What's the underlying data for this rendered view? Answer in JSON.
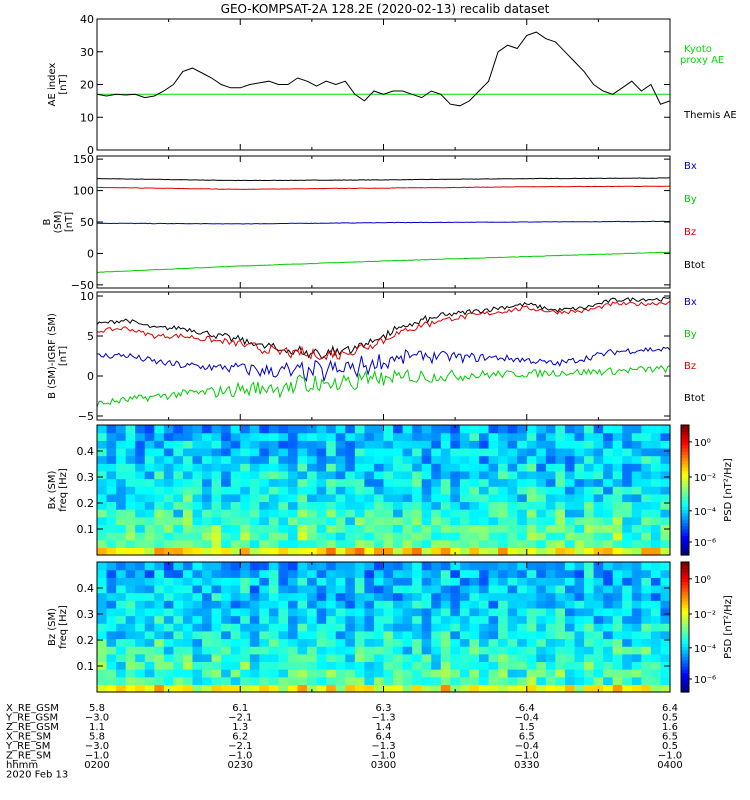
{
  "title": "GEO-KOMPSAT-2A 128.2E (2020-02-13) recalib dataset",
  "colors": {
    "black": "#000000",
    "red": "#e00000",
    "blue": "#0000c8",
    "green": "#00cc00",
    "kyoto": "#00dd00",
    "frame": "#000000"
  },
  "chart_data": [
    {
      "type": "line",
      "ylabel": [
        "AE index",
        "[nT]"
      ],
      "ylim": [
        0,
        40
      ],
      "yticks": [
        0,
        10,
        20,
        30,
        40
      ],
      "legend": [
        {
          "text": "Kyoto",
          "color": "#00dd00"
        },
        {
          "text": "proxy AE",
          "color": "#00dd00"
        },
        {
          "text": "Themis AE",
          "color": "#000000"
        }
      ],
      "series": [
        {
          "name": "Kyoto proxy AE",
          "color": "#00dd00",
          "x": [
            0,
            120
          ],
          "y": [
            17,
            17
          ]
        },
        {
          "name": "Themis AE",
          "color": "#000000",
          "x": [
            0,
            2,
            4,
            6,
            8,
            10,
            12,
            14,
            16,
            18,
            20,
            22,
            24,
            26,
            28,
            30,
            32,
            34,
            36,
            38,
            40,
            42,
            44,
            46,
            48,
            50,
            52,
            54,
            56,
            58,
            60,
            62,
            64,
            66,
            68,
            70,
            72,
            74,
            76,
            78,
            80,
            82,
            84,
            86,
            88,
            90,
            92,
            94,
            96,
            98,
            100,
            102,
            104,
            106,
            108,
            110,
            112,
            114,
            116,
            118,
            120
          ],
          "y": [
            17,
            16.5,
            17,
            16.8,
            17,
            16,
            16.5,
            18,
            20,
            24,
            25,
            23.5,
            22,
            20,
            19,
            19,
            20,
            20.5,
            21,
            20,
            20,
            22,
            21,
            19.5,
            21,
            20,
            21,
            17,
            15,
            18,
            17,
            18,
            18,
            17,
            16,
            18,
            17,
            14,
            13.5,
            15,
            18,
            21,
            30,
            32,
            31,
            35,
            36,
            34,
            33,
            30,
            27,
            24,
            20,
            18,
            17,
            19,
            21,
            18,
            20,
            14,
            15
          ]
        }
      ]
    },
    {
      "type": "line",
      "ylabel": [
        "B",
        "(SM)",
        "[nT]"
      ],
      "ylim": [
        -55,
        155
      ],
      "yticks": [
        -50,
        0,
        50,
        100,
        150
      ],
      "legend": [
        {
          "text": "Bx",
          "color": "#0000c8"
        },
        {
          "text": "By",
          "color": "#00cc00"
        },
        {
          "text": "Bz",
          "color": "#e00000"
        },
        {
          "text": "Btot",
          "color": "#000000"
        }
      ],
      "series": [
        {
          "name": "Btot",
          "color": "#000000",
          "x": [
            0,
            30,
            60,
            90,
            120
          ],
          "y": [
            119,
            116,
            117,
            119,
            120
          ]
        },
        {
          "name": "Bz",
          "color": "#e00000",
          "x": [
            0,
            30,
            60,
            90,
            120
          ],
          "y": [
            105,
            102,
            104,
            106,
            107
          ]
        },
        {
          "name": "Bx",
          "color": "#0000c8",
          "x": [
            0,
            30,
            60,
            90,
            120
          ],
          "y": [
            48,
            47,
            49,
            50,
            51
          ]
        },
        {
          "name": "By",
          "color": "#00cc00",
          "x": [
            0,
            30,
            60,
            90,
            120
          ],
          "y": [
            -30,
            -20,
            -12,
            -5,
            2
          ]
        }
      ]
    },
    {
      "type": "line",
      "ylabel": [
        "B (SM)-IGRF (SM)",
        "[nT]"
      ],
      "ylim": [
        -5.5,
        10.5
      ],
      "yticks": [
        -5,
        0,
        5,
        10
      ],
      "legend": [
        {
          "text": "Bx",
          "color": "#0000c8"
        },
        {
          "text": "By",
          "color": "#00cc00"
        },
        {
          "text": "Bz",
          "color": "#e00000"
        },
        {
          "text": "Btot",
          "color": "#000000"
        }
      ],
      "series": [
        {
          "name": "Btot",
          "color": "#000000",
          "x": [
            0,
            6,
            12,
            18,
            24,
            30,
            36,
            42,
            48,
            54,
            60,
            66,
            72,
            78,
            84,
            90,
            96,
            102,
            108,
            114,
            120
          ],
          "y": [
            6.5,
            7,
            6,
            6,
            5.2,
            4.5,
            3.6,
            3,
            2.8,
            3.5,
            5,
            6.5,
            7.5,
            8,
            8.5,
            9,
            8.2,
            8.5,
            9.5,
            9.6,
            9.6
          ]
        },
        {
          "name": "Bz",
          "color": "#e00000",
          "x": [
            0,
            6,
            12,
            18,
            24,
            30,
            36,
            42,
            48,
            54,
            60,
            66,
            72,
            78,
            84,
            90,
            96,
            102,
            108,
            114,
            120
          ],
          "y": [
            5.6,
            6,
            5,
            5,
            4.5,
            4,
            3.2,
            2.8,
            2.5,
            3.2,
            4.6,
            6,
            7,
            7.5,
            8,
            8.5,
            8,
            8.1,
            9,
            9,
            9.2
          ]
        },
        {
          "name": "Bx",
          "color": "#0000c8",
          "x": [
            0,
            6,
            12,
            18,
            24,
            30,
            36,
            42,
            48,
            54,
            60,
            66,
            72,
            78,
            84,
            90,
            96,
            102,
            108,
            114,
            120
          ],
          "y": [
            2.5,
            2.6,
            1.8,
            1.3,
            1.1,
            1,
            0.6,
            0.5,
            0.6,
            1,
            1.8,
            2.5,
            2.5,
            2.3,
            2.3,
            2,
            1.5,
            2.2,
            3,
            3.3,
            3.3
          ]
        },
        {
          "name": "By",
          "color": "#00cc00",
          "x": [
            0,
            6,
            12,
            18,
            24,
            30,
            36,
            42,
            48,
            54,
            60,
            66,
            72,
            78,
            84,
            90,
            96,
            102,
            108,
            114,
            120
          ],
          "y": [
            -3.5,
            -3,
            -2.6,
            -2.2,
            -2,
            -1.7,
            -1.5,
            -1.2,
            -1,
            -0.7,
            -0.4,
            -0.1,
            0,
            0.1,
            0.2,
            0.3,
            0.4,
            0.5,
            0.6,
            0.8,
            0.9
          ]
        }
      ]
    },
    {
      "type": "heatmap",
      "ylabel": [
        "Bx (SM)",
        "freq [Hz]"
      ],
      "ylim": [
        0,
        0.5
      ],
      "yticks": [
        0.1,
        0.2,
        0.3,
        0.4
      ],
      "colorbar": {
        "label": "PSD [nT²/Hz]",
        "ticks": [
          "10⁰",
          "10⁻²",
          "10⁻⁴",
          "10⁻⁶"
        ],
        "range_log10": [
          -7,
          1
        ]
      },
      "rows_log10_psd": [
        -3.2,
        -3.4,
        -3.5,
        -3.6,
        -3.8,
        -3.9,
        -4,
        -4.1,
        -4.2,
        -4.3,
        -4.3,
        -4.4,
        -4.5,
        -4.5,
        -4.6,
        -4.6,
        -4.7
      ]
    },
    {
      "type": "heatmap",
      "ylabel": [
        "Bz (SM)",
        "freq [Hz]"
      ],
      "ylim": [
        0,
        0.5
      ],
      "yticks": [
        0.1,
        0.2,
        0.3,
        0.4
      ],
      "colorbar": {
        "label": "PSD [nT²/Hz]",
        "ticks": [
          "10⁰",
          "10⁻²",
          "10⁻⁴",
          "10⁻⁶"
        ],
        "range_log10": [
          -7,
          1
        ]
      },
      "rows_log10_psd": [
        -3.4,
        -3.6,
        -3.7,
        -3.8,
        -3.9,
        -4,
        -4.1,
        -4.2,
        -4.3,
        -4.3,
        -4.4,
        -4.5,
        -4.5,
        -4.6,
        -4.6,
        -4.7,
        -4.7
      ]
    }
  ],
  "ephemeris": {
    "row_labels": [
      "X_RE_GSM",
      "Y_RE_GSM",
      "Z_RE_GSM",
      "X_RE_SM",
      "Y_RE_SM",
      "Z_RE_SM",
      "hhmm"
    ],
    "date": "2020 Feb 13",
    "columns": [
      {
        "x": 0,
        "values": [
          "5.8",
          "−3.0",
          "1.1",
          "5.8",
          "−3.0",
          "−1.0",
          "0200"
        ]
      },
      {
        "x": 30,
        "values": [
          "6.1",
          "−2.1",
          "1.3",
          "6.2",
          "−2.1",
          "−1.0",
          "0230"
        ]
      },
      {
        "x": 60,
        "values": [
          "6.3",
          "−1.3",
          "1.4",
          "6.4",
          "−1.3",
          "−1.0",
          "0300"
        ]
      },
      {
        "x": 90,
        "values": [
          "6.4",
          "−0.4",
          "1.5",
          "6.5",
          "−0.4",
          "−1.0",
          "0330"
        ]
      },
      {
        "x": 120,
        "values": [
          "6.4",
          "0.5",
          "1.6",
          "6.5",
          "0.5",
          "−1.0",
          "0400"
        ]
      }
    ]
  }
}
